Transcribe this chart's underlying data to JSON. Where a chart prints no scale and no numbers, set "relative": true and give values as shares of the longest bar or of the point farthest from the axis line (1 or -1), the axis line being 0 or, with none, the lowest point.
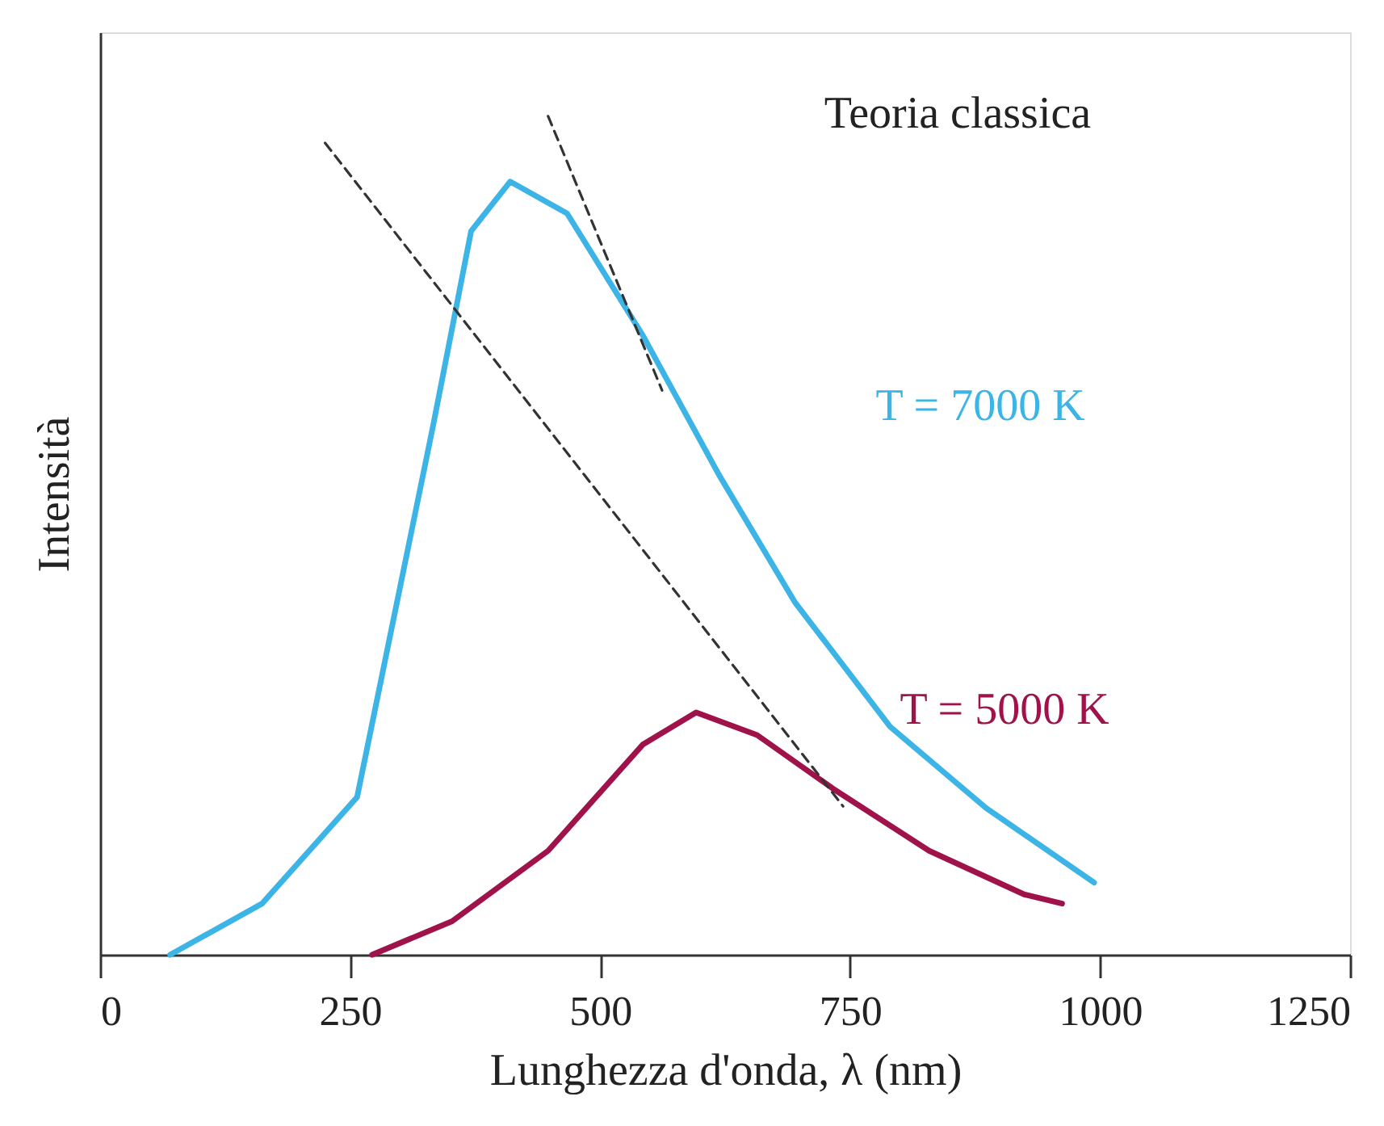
{
  "chart_data": {
    "type": "line",
    "relative": true,
    "xlabel": "Lunghezza d'onda, λ (nm)",
    "ylabel": "Intensità",
    "xlim": [
      0,
      1250
    ],
    "xticks": [
      0,
      250,
      500,
      750,
      1000,
      1250
    ],
    "grid": false,
    "marker": "none",
    "tick_labels": "x",
    "series": [
      {
        "name": "T = 7000 K",
        "color": "#3cb4e6",
        "line_style": "solid",
        "x": [
          70,
          162,
          257,
          333,
          371,
          410,
          467,
          543,
          619,
          695,
          790,
          886,
          994
        ],
        "values": [
          0,
          0.061,
          0.188,
          0.631,
          0.863,
          0.922,
          0.884,
          0.738,
          0.572,
          0.42,
          0.272,
          0.175,
          0.086
        ]
      },
      {
        "name": "T = 5000 K",
        "color": "#a0124a",
        "line_style": "solid",
        "x": [
          272,
          352,
          448,
          543,
          596,
          657,
          733,
          829,
          924,
          962
        ],
        "values": [
          0,
          0.04,
          0.124,
          0.251,
          0.289,
          0.262,
          0.198,
          0.124,
          0.072,
          0.061
        ]
      },
      {
        "color": "#333333",
        "line_style": "dashed",
        "x": [
          225,
          743
        ],
        "values": [
          0.968,
          0.177
        ]
      },
      {
        "color": "#333333",
        "line_style": "dashed",
        "x": [
          448,
          562
        ],
        "values": [
          1.0,
          0.673
        ]
      }
    ],
    "annotations": [
      "Teoria classica"
    ]
  }
}
